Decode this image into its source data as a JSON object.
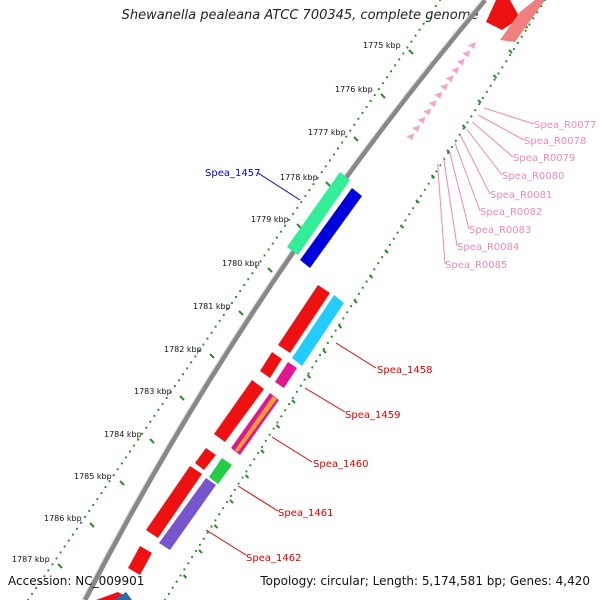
{
  "title": "Shewanella pealeana ATCC 700345, complete genome",
  "accession": "Accession: NC_009901",
  "summary": "Topology: circular; Length: 5,174,581 bp; Genes: 4,420",
  "scale_labels": [
    "1775 kbp",
    "1776 kbp",
    "1777 kbp",
    "1778 kbp",
    "1779 kbp",
    "1780 kbp",
    "1781 kbp",
    "1782 kbp",
    "1783 kbp",
    "1784 kbp",
    "1785 kbp",
    "1786 kbp",
    "1787 kbp"
  ],
  "genes": [
    {
      "label": "Spea_1457",
      "color": "#0000cc"
    },
    {
      "label": "Spea_1458",
      "color": "#dd0000"
    },
    {
      "label": "Spea_1459",
      "color": "#dd0000"
    },
    {
      "label": "Spea_1460",
      "color": "#dd0000"
    },
    {
      "label": "Spea_1461",
      "color": "#dd0000"
    },
    {
      "label": "Spea_1462",
      "color": "#dd0000"
    }
  ],
  "rna_labels": [
    "Spea_R0077",
    "Spea_R0078",
    "Spea_R0079",
    "Spea_R0080",
    "Spea_R0081",
    "Spea_R0082",
    "Spea_R0083",
    "Spea_R0084",
    "Spea_R0085"
  ],
  "colors": {
    "backbone": "#888888",
    "dots": "#2e8b2e",
    "cds_forward": "#ee1111",
    "rna": "#f4a3d0",
    "rna_label": "#ee88bb",
    "blue_gene": "#0000dd",
    "green_gene": "#33ee99"
  }
}
